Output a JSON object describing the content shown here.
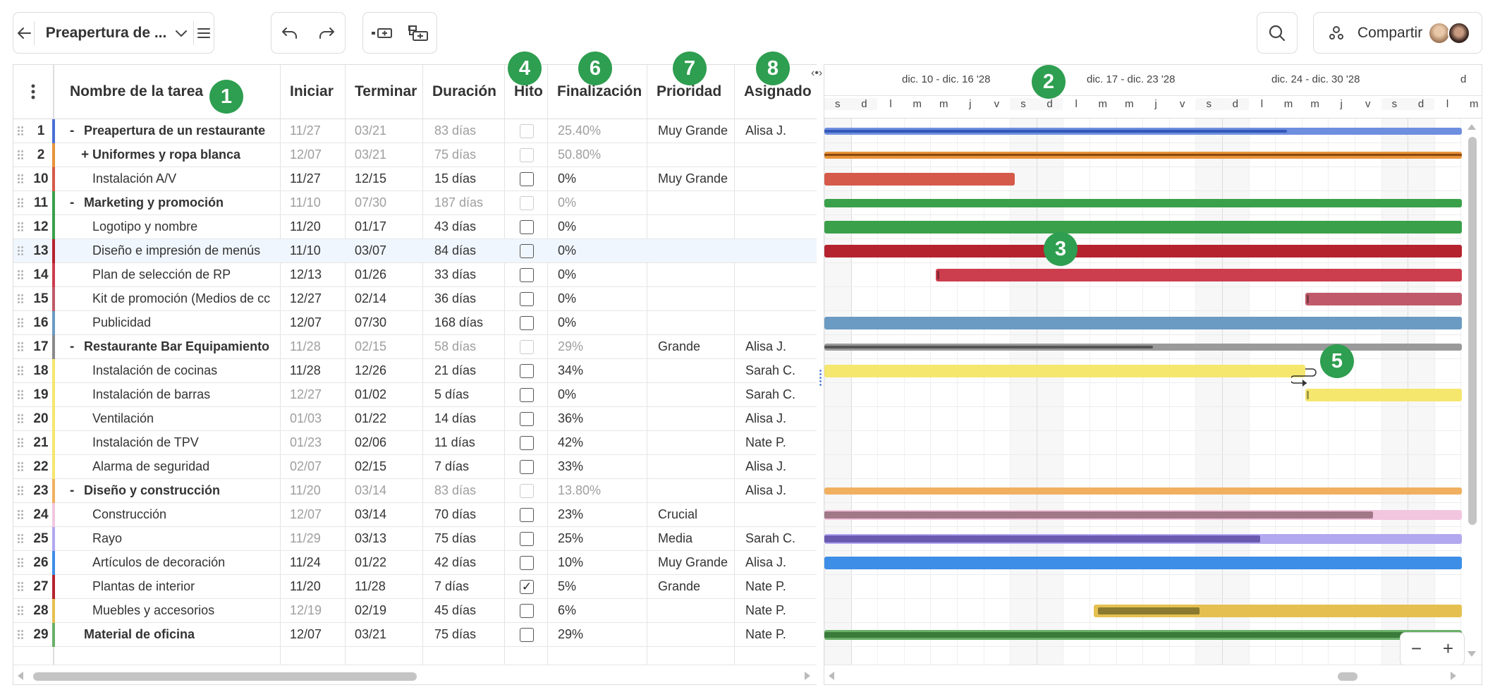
{
  "toolbar": {
    "project_name": "Preapertura de ...",
    "share_label": "Compartir"
  },
  "columns": {
    "name": "Nombre de la tarea",
    "start": "Iniciar",
    "end": "Terminar",
    "duration": "Duración",
    "milestone": "Hito",
    "completion": "Finalización",
    "priority": "Prioridad",
    "assigned": "Asignado"
  },
  "badges": [
    "1",
    "2",
    "3",
    "4",
    "5",
    "6",
    "7",
    "8"
  ],
  "timeline": {
    "weeks": [
      "dic. 10 - dic. 16 '28",
      "dic. 17 - dic. 23 '28",
      "dic. 24 - dic. 30 '28",
      "d"
    ],
    "days": [
      "s",
      "d",
      "l",
      "m",
      "m",
      "j",
      "v",
      "s",
      "d",
      "l",
      "m",
      "m",
      "j",
      "v",
      "s",
      "d",
      "l",
      "m",
      "m",
      "j",
      "v",
      "s",
      "d",
      "l",
      "m"
    ]
  },
  "rows": [
    {
      "num": "1",
      "toggle": "-",
      "name": "Preapertura de un restaurante",
      "start": "11/27",
      "end": "03/21",
      "duration": "83 días",
      "milestone": false,
      "completion": "25.40%",
      "priority": "Muy Grande",
      "assigned": "Alisa J.",
      "level": 0,
      "summary": true,
      "color": "#4a6fd6"
    },
    {
      "num": "2",
      "toggle": "+",
      "name": "Uniformes y ropa blanca",
      "start": "12/07",
      "end": "03/21",
      "duration": "75 días",
      "milestone": false,
      "completion": "50.80%",
      "priority": "",
      "assigned": "",
      "level": 0,
      "summary": true,
      "color": "#e8923a"
    },
    {
      "num": "10",
      "toggle": "",
      "name": "Instalación A/V",
      "start": "11/27",
      "end": "12/15",
      "duration": "15 días",
      "milestone": false,
      "completion": "0%",
      "priority": "Muy Grande",
      "assigned": "",
      "level": 1,
      "summary": false,
      "color": "#d65a4a"
    },
    {
      "num": "11",
      "toggle": "-",
      "name": "Marketing y promoción",
      "start": "11/10",
      "end": "07/30",
      "duration": "187 días",
      "milestone": false,
      "completion": "0%",
      "priority": "",
      "assigned": "",
      "level": 0,
      "summary": true,
      "color": "#3aa04a"
    },
    {
      "num": "12",
      "toggle": "",
      "name": "Logotipo y nombre",
      "start": "11/20",
      "end": "01/17",
      "duration": "43 días",
      "milestone": false,
      "completion": "0%",
      "priority": "",
      "assigned": "",
      "level": 1,
      "summary": false,
      "color": "#3aa04a"
    },
    {
      "num": "13",
      "toggle": "",
      "name": "Diseño e impresión de menús",
      "start": "11/10",
      "end": "03/07",
      "duration": "84 días",
      "milestone": false,
      "completion": "0%",
      "priority": "",
      "assigned": "",
      "level": 1,
      "summary": false,
      "color": "#b5232e"
    },
    {
      "num": "14",
      "toggle": "",
      "name": "Plan de selección de RP",
      "start": "12/13",
      "end": "01/26",
      "duration": "33 días",
      "milestone": false,
      "completion": "0%",
      "priority": "",
      "assigned": "",
      "level": 1,
      "summary": false,
      "color": "#cc3e4e"
    },
    {
      "num": "15",
      "toggle": "",
      "name": "Kit de promoción (Medios de cc",
      "start": "12/27",
      "end": "02/14",
      "duration": "36 días",
      "milestone": false,
      "completion": "0%",
      "priority": "",
      "assigned": "",
      "level": 1,
      "summary": false,
      "color": "#c05a6a"
    },
    {
      "num": "16",
      "toggle": "",
      "name": "Publicidad",
      "start": "12/07",
      "end": "07/30",
      "duration": "168 días",
      "milestone": false,
      "completion": "0%",
      "priority": "",
      "assigned": "",
      "level": 1,
      "summary": false,
      "color": "#6b9bc3"
    },
    {
      "num": "17",
      "toggle": "-",
      "name": "Restaurante Bar Equipamiento",
      "start": "11/28",
      "end": "02/15",
      "duration": "58 días",
      "milestone": false,
      "completion": "29%",
      "priority": "Grande",
      "assigned": "Alisa J.",
      "level": 0,
      "summary": true,
      "color": "#8a8a8a"
    },
    {
      "num": "18",
      "toggle": "",
      "name": "Instalación de cocinas",
      "start": "11/28",
      "end": "12/26",
      "duration": "21 días",
      "milestone": false,
      "completion": "34%",
      "priority": "",
      "assigned": "Sarah C.",
      "level": 1,
      "summary": false,
      "color": "#f5e76e"
    },
    {
      "num": "19",
      "toggle": "",
      "name": "Instalación de barras",
      "start": "12/27",
      "end": "01/02",
      "duration": "5 días",
      "milestone": false,
      "completion": "0%",
      "priority": "",
      "assigned": "Sarah C.",
      "level": 1,
      "summary": false,
      "color": "#f5e76e"
    },
    {
      "num": "20",
      "toggle": "",
      "name": "Ventilación",
      "start": "01/03",
      "end": "01/22",
      "duration": "14 días",
      "milestone": false,
      "completion": "36%",
      "priority": "",
      "assigned": "Alisa J.",
      "level": 1,
      "summary": false,
      "color": "#f5e76e"
    },
    {
      "num": "21",
      "toggle": "",
      "name": "Instalación de TPV",
      "start": "01/23",
      "end": "02/06",
      "duration": "11 días",
      "milestone": false,
      "completion": "42%",
      "priority": "",
      "assigned": "Nate P.",
      "level": 1,
      "summary": false,
      "color": "#f5e76e"
    },
    {
      "num": "22",
      "toggle": "",
      "name": "Alarma de seguridad",
      "start": "02/07",
      "end": "02/15",
      "duration": "7 días",
      "milestone": false,
      "completion": "33%",
      "priority": "",
      "assigned": "Alisa J.",
      "level": 1,
      "summary": false,
      "color": "#f5e76e"
    },
    {
      "num": "23",
      "toggle": "-",
      "name": "Diseño y construcción",
      "start": "11/20",
      "end": "03/14",
      "duration": "83 días",
      "milestone": false,
      "completion": "13.80%",
      "priority": "",
      "assigned": "Alisa J.",
      "level": 0,
      "summary": true,
      "color": "#f0b060"
    },
    {
      "num": "24",
      "toggle": "",
      "name": "Construcción",
      "start": "12/07",
      "end": "03/14",
      "duration": "70 días",
      "milestone": false,
      "completion": "23%",
      "priority": "Crucial",
      "assigned": "",
      "level": 1,
      "summary": false,
      "color": "#f2c6de"
    },
    {
      "num": "25",
      "toggle": "",
      "name": "Rayo",
      "start": "11/29",
      "end": "03/13",
      "duration": "75 días",
      "milestone": false,
      "completion": "25%",
      "priority": "Media",
      "assigned": "Sarah C.",
      "level": 1,
      "summary": false,
      "color": "#b2a8f0"
    },
    {
      "num": "26",
      "toggle": "",
      "name": "Artículos de decoración",
      "start": "11/24",
      "end": "01/22",
      "duration": "42 días",
      "milestone": false,
      "completion": "10%",
      "priority": "Muy Grande",
      "assigned": "Alisa J.",
      "level": 1,
      "summary": false,
      "color": "#3d8ee6"
    },
    {
      "num": "27",
      "toggle": "",
      "name": "Plantas de interior",
      "start": "11/20",
      "end": "11/28",
      "duration": "7 días",
      "milestone": true,
      "completion": "5%",
      "priority": "Grande",
      "assigned": "Nate P.",
      "level": 1,
      "summary": false,
      "color": "#b5232e"
    },
    {
      "num": "28",
      "toggle": "",
      "name": "Muebles y accesorios",
      "start": "12/19",
      "end": "02/19",
      "duration": "45 días",
      "milestone": false,
      "completion": "6%",
      "priority": "",
      "assigned": "Nate P.",
      "level": 1,
      "summary": false,
      "color": "#e5c050"
    },
    {
      "num": "29",
      "toggle": "",
      "name": "Material de oficina",
      "start": "12/07",
      "end": "03/21",
      "duration": "75 días",
      "milestone": false,
      "completion": "29%",
      "priority": "",
      "assigned": "Nate P.",
      "level": 0,
      "summary": false,
      "color": "#6ab06a"
    }
  ]
}
